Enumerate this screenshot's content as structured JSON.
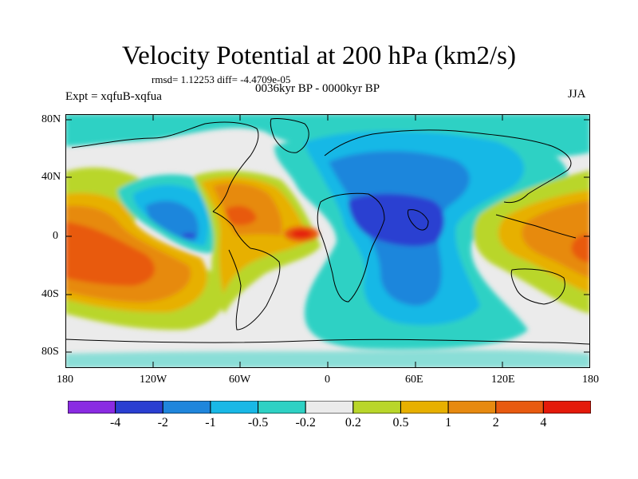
{
  "title": "Velocity Potential at 200 hPa (km2/s)",
  "stats": "rmsd= 1.12253 diff= -4.4709e-05",
  "experiment": "Expt = xqfuB-xqfua",
  "period": "0036kyr BP - 0000kyr BP",
  "season": "JJA",
  "lat_labels": [
    "80N",
    "40N",
    "0",
    "40S",
    "80S"
  ],
  "lon_labels": [
    "180",
    "120W",
    "60W",
    "0",
    "60E",
    "120E",
    "180"
  ],
  "colorbar": {
    "labels": [
      "-4",
      "-2",
      "-1",
      "-0.5",
      "-0.2",
      "0.2",
      "0.5",
      "1",
      "2",
      "4"
    ],
    "colors": [
      "#8a2be2",
      "#2a3fd1",
      "#1f86dc",
      "#19b8e6",
      "#2ed1c4",
      "#ebebeb",
      "#b9d62a",
      "#e7b000",
      "#e78a10",
      "#e85a10",
      "#e41a0a"
    ]
  }
}
